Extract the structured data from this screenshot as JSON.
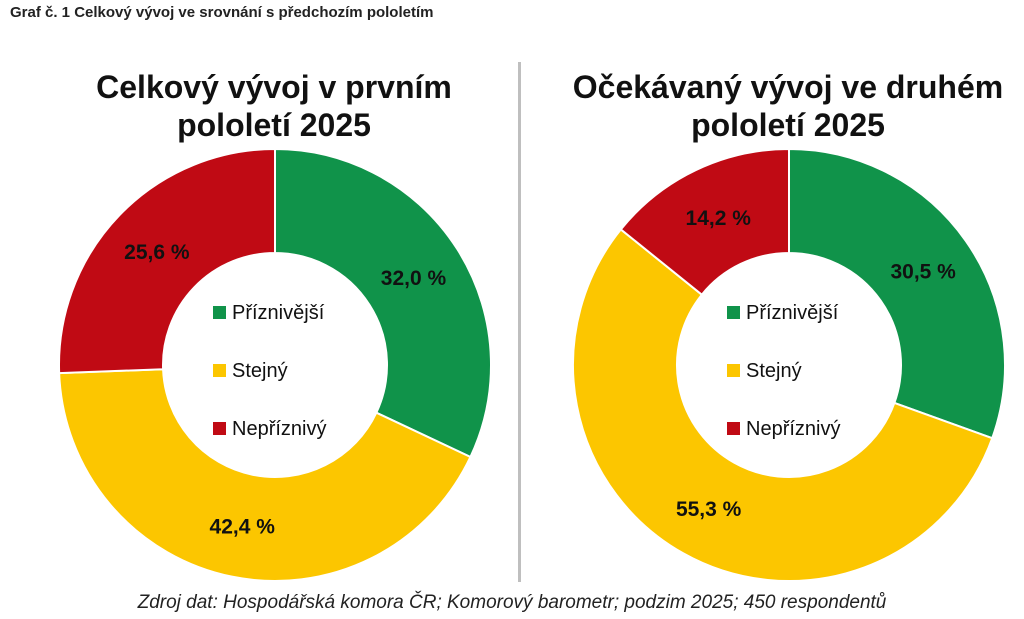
{
  "figure_caption": "Graf č. 1 Celkový vývoj ve srovnání s předchozím pololetím",
  "source_note": "Zdroj dat: Hospodářská komora ČR; Komorový barometr; podzim 2025; 450 respondentů",
  "colors": {
    "favorable": "#10934a",
    "same": "#fcc600",
    "unfavorable": "#c00a14"
  },
  "chart_data": [
    {
      "type": "pie",
      "variant": "donut",
      "title_lines": [
        "Celkový vývoj v prvním",
        "pololetí 2025"
      ],
      "categories": [
        "Příznivější",
        "Stejný",
        "Nepříznivý"
      ],
      "values": [
        32.0,
        42.4,
        25.6
      ],
      "data_labels": [
        "32,0 %",
        "42,4 %",
        "25,6 %"
      ],
      "legend": "center"
    },
    {
      "type": "pie",
      "variant": "donut",
      "title_lines": [
        "Očekávaný vývoj ve druhém",
        "pololetí 2025"
      ],
      "categories": [
        "Příznivější",
        "Stejný",
        "Nepříznivý"
      ],
      "values": [
        30.5,
        55.3,
        14.2
      ],
      "data_labels": [
        "30,5 %",
        "55,3 %",
        "14,2 %"
      ],
      "legend": "center"
    }
  ]
}
